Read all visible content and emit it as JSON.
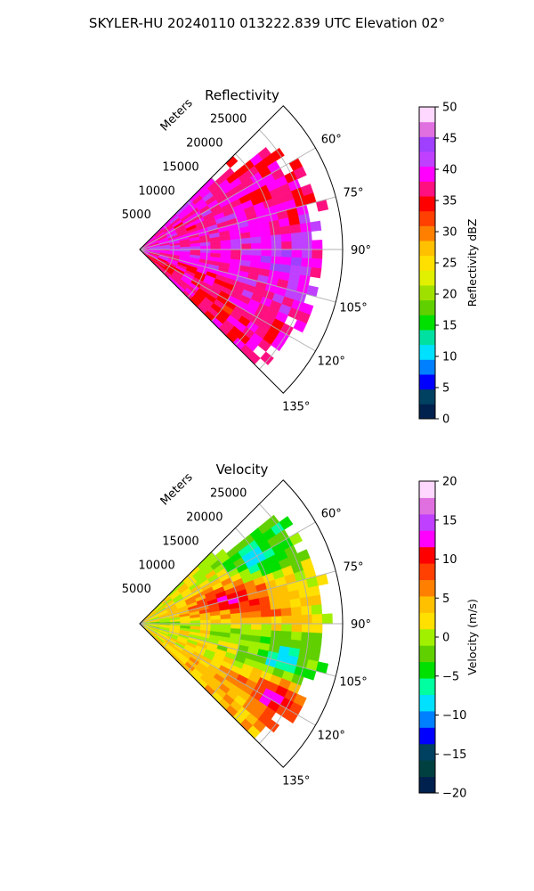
{
  "figure_title": "SKYLER-HU  20240110  013222.839 UTC Elevation 02°",
  "chart_data": [
    {
      "type": "heatmap",
      "subtype": "polar-sector",
      "title": "Reflectivity",
      "radial_label": "Meters",
      "radial_ticks": [
        "5000",
        "10000",
        "15000",
        "20000",
        "25000"
      ],
      "radial_tick_values": [
        5000,
        10000,
        15000,
        20000,
        25000
      ],
      "rlim": [
        0,
        30000
      ],
      "angle_ticks": [
        "60°",
        "75°",
        "90°",
        "105°",
        "120°",
        "135°"
      ],
      "angle_tick_values": [
        60,
        75,
        90,
        105,
        120,
        135
      ],
      "theta_range_deg": [
        45,
        135
      ],
      "grid": true,
      "field_features": [
        {
          "azimuth": 80,
          "range": 8500,
          "value": 38
        },
        {
          "azimuth": 70,
          "range": 23000,
          "value": 36
        },
        {
          "azimuth": 90,
          "range": 23000,
          "value": 38
        },
        {
          "azimuth": 95,
          "range": 22000,
          "value": 44
        },
        {
          "azimuth": 110,
          "range": 20000,
          "value": 38
        },
        {
          "azimuth": 115,
          "range": 12000,
          "value": 36
        },
        {
          "azimuth": 125,
          "range": 16000,
          "value": 36
        },
        {
          "azimuth": 90,
          "range": 4000,
          "value": 40
        }
      ],
      "colorbar": {
        "label": "Reflectivity dBZ",
        "min": 0,
        "max": 50,
        "ticks": [
          "0",
          "5",
          "10",
          "15",
          "20",
          "25",
          "30",
          "35",
          "40",
          "45",
          "50"
        ],
        "tick_values": [
          0,
          5,
          10,
          15,
          20,
          25,
          30,
          35,
          40,
          45,
          50
        ],
        "colors": [
          "#00204d",
          "#004060",
          "#0000ff",
          "#0080ff",
          "#00e0ff",
          "#00e0a0",
          "#00e000",
          "#60d000",
          "#a0e000",
          "#e0f000",
          "#ffe000",
          "#ffc000",
          "#ff8000",
          "#ff4000",
          "#ff0000",
          "#ff1080",
          "#ff00ff",
          "#c040ff",
          "#a040ff",
          "#e070e0",
          "#ffd8ff"
        ]
      }
    },
    {
      "type": "heatmap",
      "subtype": "polar-sector",
      "title": "Velocity",
      "radial_label": "Meters",
      "radial_ticks": [
        "5000",
        "10000",
        "15000",
        "20000",
        "25000"
      ],
      "radial_tick_values": [
        5000,
        10000,
        15000,
        20000,
        25000
      ],
      "rlim": [
        0,
        30000
      ],
      "angle_ticks": [
        "60°",
        "75°",
        "90°",
        "105°",
        "120°",
        "135°"
      ],
      "angle_tick_values": [
        60,
        75,
        90,
        105,
        120,
        135
      ],
      "theta_range_deg": [
        45,
        135
      ],
      "grid": true,
      "field_features": [
        {
          "azimuth": 62,
          "range": 20000,
          "value": -8
        },
        {
          "azimuth": 75,
          "range": 14000,
          "value": 13
        },
        {
          "azimuth": 82,
          "range": 18000,
          "value": 9
        },
        {
          "azimuth": 95,
          "range": 16000,
          "value": -2
        },
        {
          "azimuth": 105,
          "range": 22000,
          "value": -10
        },
        {
          "azimuth": 118,
          "range": 22000,
          "value": 13
        },
        {
          "azimuth": 128,
          "range": 18000,
          "value": 4
        },
        {
          "azimuth": 90,
          "range": 3000,
          "value": -1
        }
      ],
      "colorbar": {
        "label": "Velocity (m/s)",
        "min": -20,
        "max": 20,
        "ticks": [
          "−20",
          "−15",
          "−10",
          "−5",
          "0",
          "5",
          "10",
          "15",
          "20"
        ],
        "tick_values": [
          -20,
          -15,
          -10,
          -5,
          0,
          5,
          10,
          15,
          20
        ],
        "colors": [
          "#00204d",
          "#004040",
          "#004060",
          "#0000ff",
          "#0080ff",
          "#00e0ff",
          "#00ffa0",
          "#00e000",
          "#60d000",
          "#a0f000",
          "#ffe000",
          "#ffc000",
          "#ff8000",
          "#ff4000",
          "#ff0000",
          "#ff00ff",
          "#c040ff",
          "#e070e0",
          "#ffd8ff"
        ]
      }
    }
  ]
}
